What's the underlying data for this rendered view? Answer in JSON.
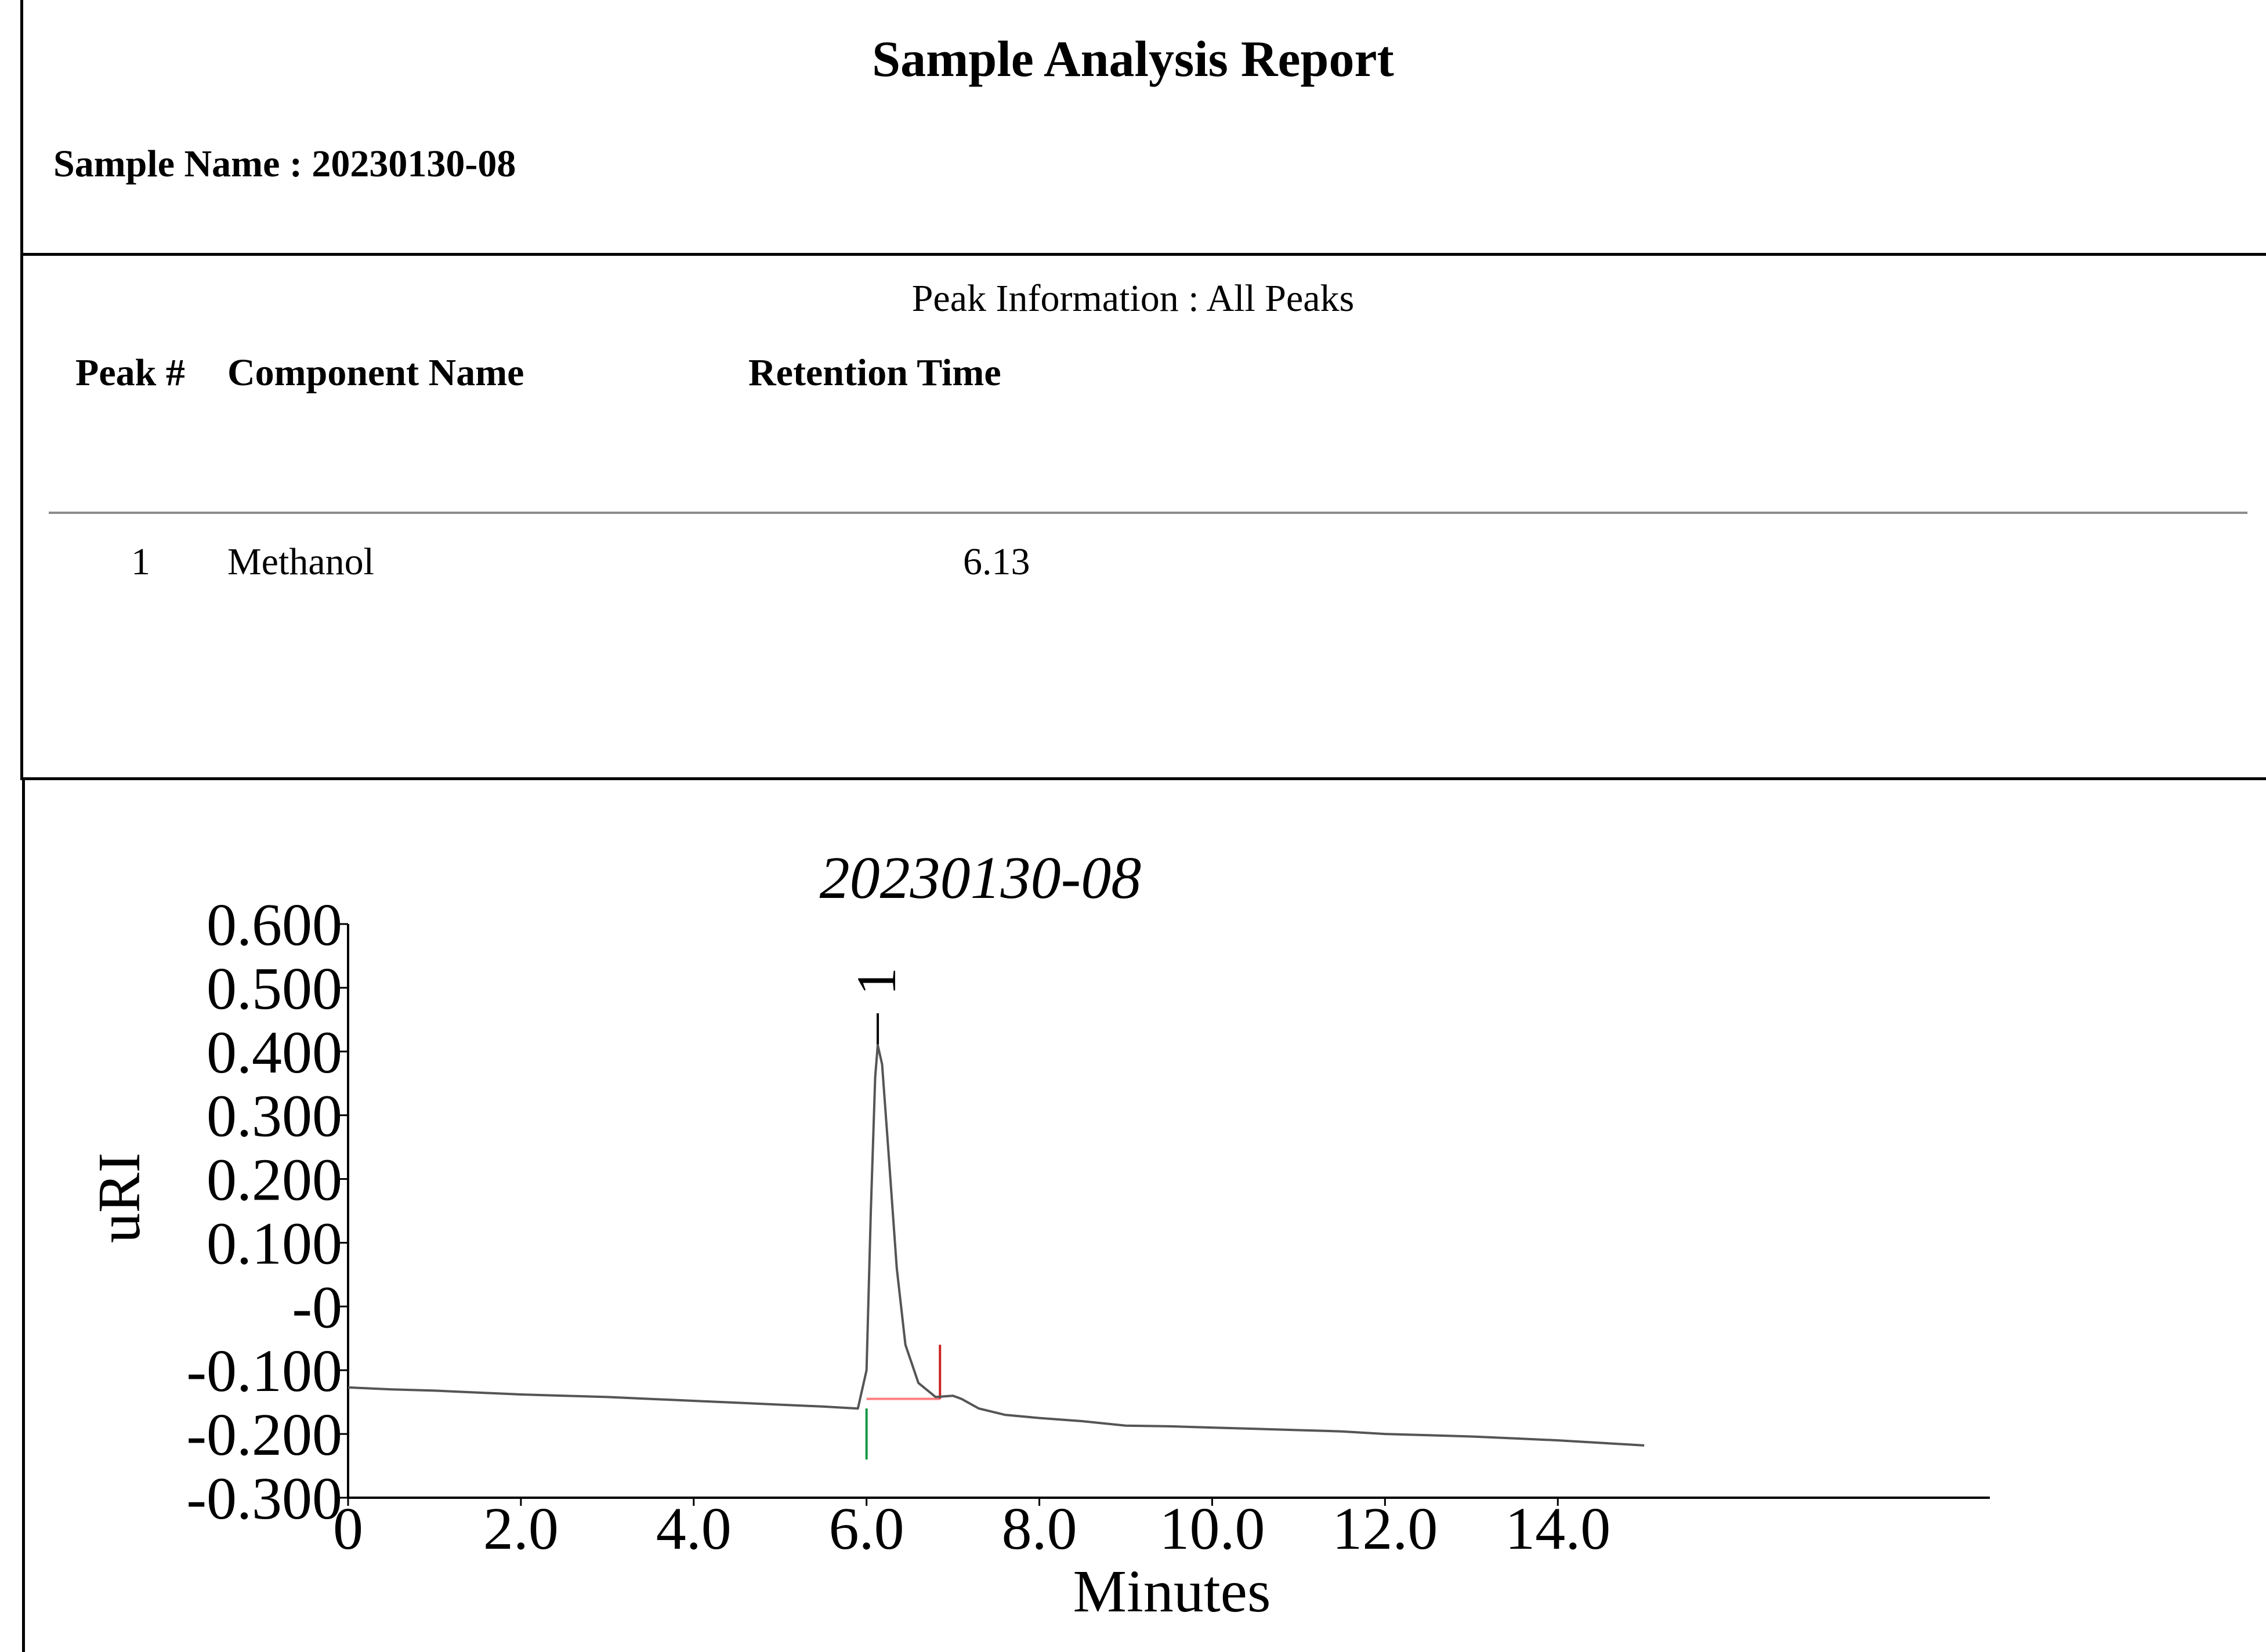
{
  "report": {
    "title": "Sample Analysis Report",
    "sample_label": "Sample Name : 20230130-08",
    "peak_info_title": "Peak Information : All Peaks",
    "columns": {
      "peak": "Peak #",
      "component": "Component Name",
      "retention": "Retention Time"
    },
    "rows": [
      {
        "peak": "1",
        "component": "Methanol",
        "retention": "6.13"
      }
    ]
  },
  "chart_data": {
    "type": "line",
    "title": "20230130-08",
    "xlabel": "Minutes",
    "ylabel": "uRI",
    "xlim": [
      0,
      19
    ],
    "ylim": [
      -0.3,
      0.6
    ],
    "x_ticks": [
      0,
      2,
      4,
      6,
      8,
      10,
      12,
      14
    ],
    "x_tick_labels": [
      "0",
      "2.0",
      "4.0",
      "6.0",
      "8.0",
      "10.0",
      "12.0",
      "14.0"
    ],
    "y_ticks": [
      0.6,
      0.5,
      0.4,
      0.3,
      0.2,
      0.1,
      0,
      -0.1,
      -0.2,
      -0.3
    ],
    "y_tick_labels": [
      "0.600",
      "0.500",
      "0.400",
      "0.300",
      "0.200",
      "0.100",
      "-0",
      "-0.100",
      "-0.200",
      "-0.300"
    ],
    "grid": false,
    "series": [
      {
        "x": [
          0,
          0.5,
          1.0,
          1.5,
          2.0,
          2.5,
          3.0,
          3.5,
          4.0,
          4.5,
          5.0,
          5.5,
          5.9,
          6.0,
          6.05,
          6.1,
          6.13,
          6.18,
          6.25,
          6.35,
          6.45,
          6.6,
          6.8,
          7.0,
          7.1,
          7.3,
          7.6,
          8.0,
          8.5,
          9.0,
          9.5,
          10.0,
          10.5,
          11.0,
          11.5,
          12.0,
          12.5,
          13.0,
          13.5,
          14.0,
          14.5,
          15.0
        ],
        "y": [
          -0.127,
          -0.13,
          -0.132,
          -0.135,
          -0.138,
          -0.14,
          -0.142,
          -0.145,
          -0.148,
          -0.151,
          -0.154,
          -0.157,
          -0.16,
          -0.1,
          0.15,
          0.36,
          0.41,
          0.38,
          0.25,
          0.06,
          -0.06,
          -0.12,
          -0.142,
          -0.14,
          -0.145,
          -0.16,
          -0.17,
          -0.175,
          -0.18,
          -0.187,
          -0.188,
          -0.19,
          -0.192,
          -0.194,
          -0.196,
          -0.2,
          -0.202,
          -0.204,
          -0.207,
          -0.21,
          -0.214,
          -0.218
        ]
      }
    ],
    "annotations": [
      {
        "text": "1",
        "x": 6.13
      }
    ],
    "baseline": {
      "x": [
        6.0,
        6.85
      ],
      "y": [
        -0.145,
        -0.145
      ],
      "color": "#ff7f7f"
    },
    "peak_start_marker": {
      "x": 6.0,
      "y_top": -0.16,
      "y_bottom": -0.24,
      "color": "#119944"
    },
    "peak_end_marker": {
      "x": 6.85,
      "y_top": -0.06,
      "y_bottom": -0.145,
      "color": "#cc2222"
    },
    "apex_marker": {
      "x": 6.13,
      "y_top": 0.46,
      "y_bottom": 0.41,
      "color": "#000000"
    },
    "trace_color": "#555555"
  }
}
